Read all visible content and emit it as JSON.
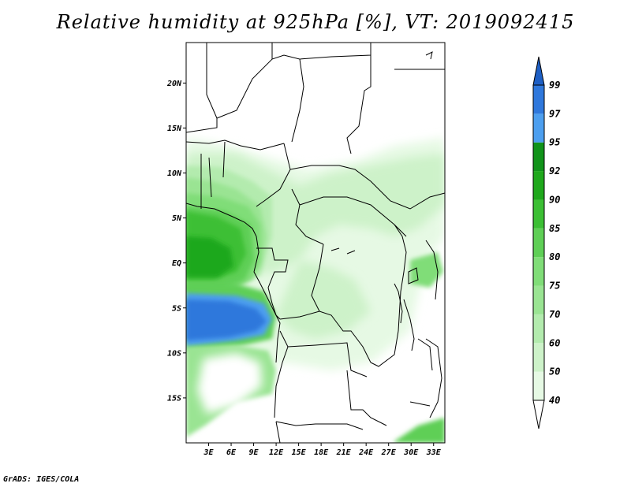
{
  "title": "Relative humidity at 925hPa [%], VT: 2019092415",
  "credit": "GrADS: IGES/COLA",
  "axes": {
    "lat_labels": [
      {
        "label": "20N",
        "lat": 20
      },
      {
        "label": "15N",
        "lat": 15
      },
      {
        "label": "10N",
        "lat": 10
      },
      {
        "label": "5N",
        "lat": 5
      },
      {
        "label": "EQ",
        "lat": 0
      },
      {
        "label": "5S",
        "lat": -5
      },
      {
        "label": "10S",
        "lat": -10
      },
      {
        "label": "15S",
        "lat": -15
      }
    ],
    "lon_labels": [
      {
        "label": "3E",
        "lon": 3
      },
      {
        "label": "6E",
        "lon": 6
      },
      {
        "label": "9E",
        "lon": 9
      },
      {
        "label": "12E",
        "lon": 12
      },
      {
        "label": "15E",
        "lon": 15
      },
      {
        "label": "18E",
        "lon": 18
      },
      {
        "label": "21E",
        "lon": 21
      },
      {
        "label": "24E",
        "lon": 24
      },
      {
        "label": "27E",
        "lon": 27
      },
      {
        "label": "30E",
        "lon": 30
      },
      {
        "label": "33E",
        "lon": 33
      }
    ],
    "lon_range": [
      0,
      34.5
    ],
    "lat_range": [
      -20,
      24.5
    ]
  },
  "colorbar": {
    "levels": [
      "40",
      "50",
      "60",
      "70",
      "75",
      "80",
      "85",
      "90",
      "92",
      "95",
      "97",
      "99"
    ],
    "colors": [
      "#ffffff",
      "#e6f9e4",
      "#cdf2c9",
      "#b3ebae",
      "#9ae493",
      "#80dd78",
      "#5fcf56",
      "#3cbf34",
      "#1fa81c",
      "#11931a",
      "#4d9fef",
      "#2f78dc",
      "#1e5fc4"
    ]
  },
  "map": {
    "ocean_color": "#ffffff",
    "land_base_color": "#ffffff"
  }
}
